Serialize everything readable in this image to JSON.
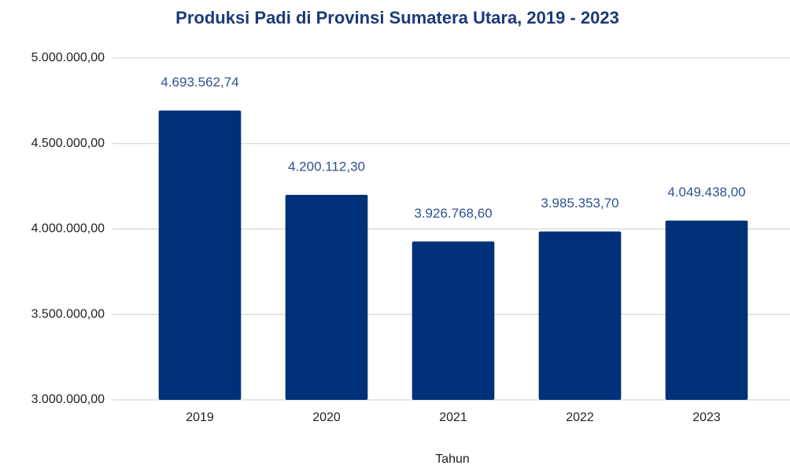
{
  "chart_data": {
    "type": "bar",
    "title": "Produksi Padi di Provinsi Sumatera Utara, 2019 - 2023",
    "x_label": "Tahun",
    "categories": [
      "2019",
      "2020",
      "2021",
      "2022",
      "2023"
    ],
    "values": [
      4693562.74,
      4200112.3,
      3926768.6,
      3985353.7,
      4049438.0
    ],
    "value_labels": [
      "4.693.562,74",
      "4.200.112,30",
      "3.926.768,60",
      "3.985.353,70",
      "4.049.438,00"
    ],
    "color": "#003178",
    "ylim": [
      3000000,
      5000000
    ],
    "yticks": [
      {
        "value": 3000000,
        "label": "3.000.000,00"
      },
      {
        "value": 3500000,
        "label": "3.500.000,00"
      },
      {
        "value": 4000000,
        "label": "4.000.000,00"
      },
      {
        "value": 4500000,
        "label": "4.500.000,00"
      },
      {
        "value": 5000000,
        "label": "5.000.000,00"
      }
    ],
    "grid": true
  }
}
